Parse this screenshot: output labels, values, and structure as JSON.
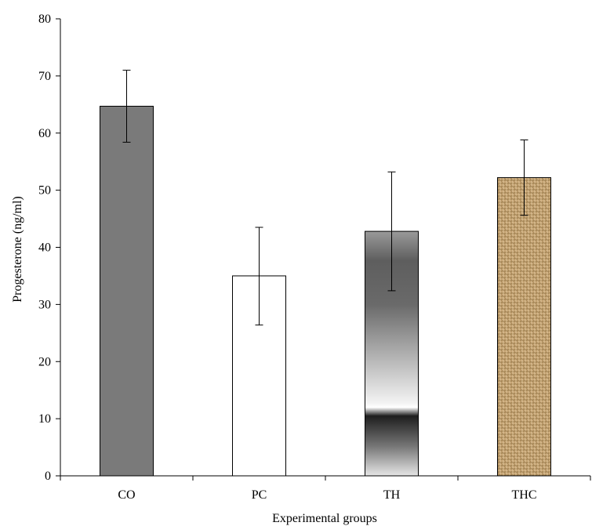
{
  "chart_data": {
    "type": "bar",
    "title": "",
    "xlabel": "Experimental groups",
    "ylabel": "Progesterone (ng/ml)",
    "ylim": [
      0,
      80
    ],
    "yticks": [
      0,
      10,
      20,
      30,
      40,
      50,
      60,
      70,
      80
    ],
    "categories": [
      "CO",
      "PC",
      "TH",
      "THC"
    ],
    "values": [
      64.7,
      35.0,
      42.8,
      52.2
    ],
    "error_low": [
      58.4,
      26.4,
      32.4,
      45.6
    ],
    "error_high": [
      71.0,
      43.5,
      53.2,
      58.8
    ],
    "grid": false,
    "legend": "none",
    "fills": [
      "#7a7a7a",
      "#ffffff",
      "gradient-gray",
      "burlap-texture"
    ]
  }
}
